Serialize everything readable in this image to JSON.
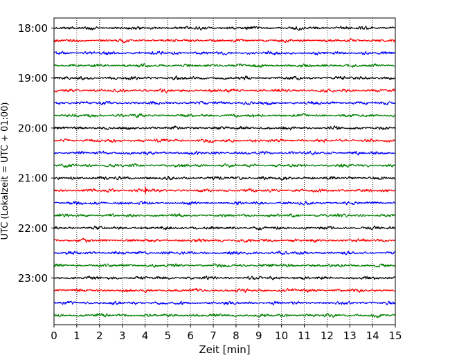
{
  "chart_data": {
    "type": "line",
    "title": "",
    "xlabel": "Zeit  [min]",
    "ylabel": "UTC (Lokalzeit = UTC + 01:00)",
    "xlim": [
      0,
      15
    ],
    "x_ticks": [
      0,
      1,
      2,
      3,
      4,
      5,
      6,
      7,
      8,
      9,
      10,
      11,
      12,
      13,
      14,
      15
    ],
    "x_tick_labels": [
      "0",
      "1",
      "2",
      "3",
      "4",
      "5",
      "6",
      "7",
      "8",
      "9",
      "10",
      "11",
      "12",
      "13",
      "14",
      "15"
    ],
    "y_tick_labels": [
      "18:00",
      "19:00",
      "20:00",
      "21:00",
      "22:00",
      "23:00"
    ],
    "grid": "vertical dotted at each minute",
    "trace_interval_min": 15,
    "line_colors": [
      "#000000",
      "#ff0000",
      "#0000ff",
      "#007f00"
    ],
    "traces": [
      {
        "start": "18:00",
        "color": "#000000"
      },
      {
        "start": "18:15",
        "color": "#ff0000"
      },
      {
        "start": "18:30",
        "color": "#0000ff"
      },
      {
        "start": "18:45",
        "color": "#007f00"
      },
      {
        "start": "19:00",
        "color": "#000000"
      },
      {
        "start": "19:15",
        "color": "#ff0000"
      },
      {
        "start": "19:30",
        "color": "#0000ff"
      },
      {
        "start": "19:45",
        "color": "#007f00"
      },
      {
        "start": "20:00",
        "color": "#000000"
      },
      {
        "start": "20:15",
        "color": "#ff0000"
      },
      {
        "start": "20:30",
        "color": "#0000ff"
      },
      {
        "start": "20:45",
        "color": "#007f00"
      },
      {
        "start": "21:00",
        "color": "#000000"
      },
      {
        "start": "21:15",
        "color": "#ff0000",
        "event_at_min": 4.0
      },
      {
        "start": "21:30",
        "color": "#0000ff"
      },
      {
        "start": "21:45",
        "color": "#007f00"
      },
      {
        "start": "22:00",
        "color": "#000000"
      },
      {
        "start": "22:15",
        "color": "#ff0000"
      },
      {
        "start": "22:30",
        "color": "#0000ff"
      },
      {
        "start": "22:45",
        "color": "#007f00"
      },
      {
        "start": "23:00",
        "color": "#000000"
      },
      {
        "start": "23:15",
        "color": "#ff0000"
      },
      {
        "start": "23:30",
        "color": "#0000ff"
      },
      {
        "start": "23:45",
        "color": "#007f00"
      }
    ]
  }
}
